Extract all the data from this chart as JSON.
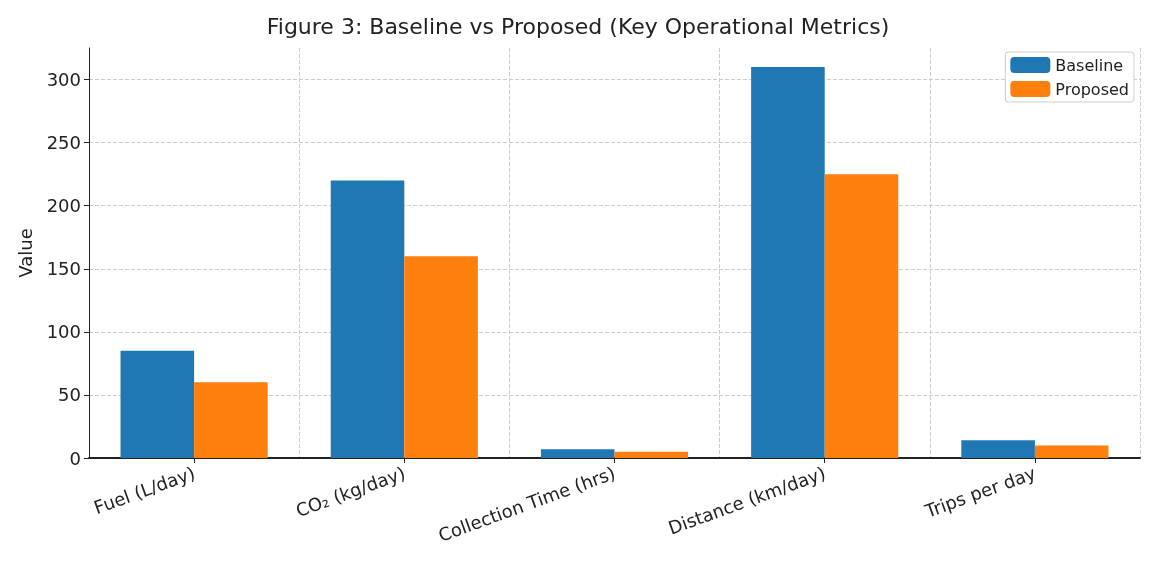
{
  "chart_data": {
    "type": "bar",
    "title": "Figure 3: Baseline vs Proposed (Key Operational Metrics)",
    "ylabel": "Value",
    "categories": [
      "Fuel (L/day)",
      "CO₂ (kg/day)",
      "Collection Time (hrs)",
      "Distance (km/day)",
      "Trips per day"
    ],
    "series": [
      {
        "name": "Baseline",
        "color": "#1f77b4",
        "values": [
          85,
          220,
          7,
          310,
          14
        ]
      },
      {
        "name": "Proposed",
        "color": "#ff7f0e",
        "values": [
          60,
          160,
          5,
          225,
          10
        ]
      }
    ],
    "ylim": [
      0,
      325
    ],
    "yticks": [
      0,
      50,
      100,
      150,
      200,
      250,
      300
    ],
    "grid": true,
    "legend": "top right"
  }
}
